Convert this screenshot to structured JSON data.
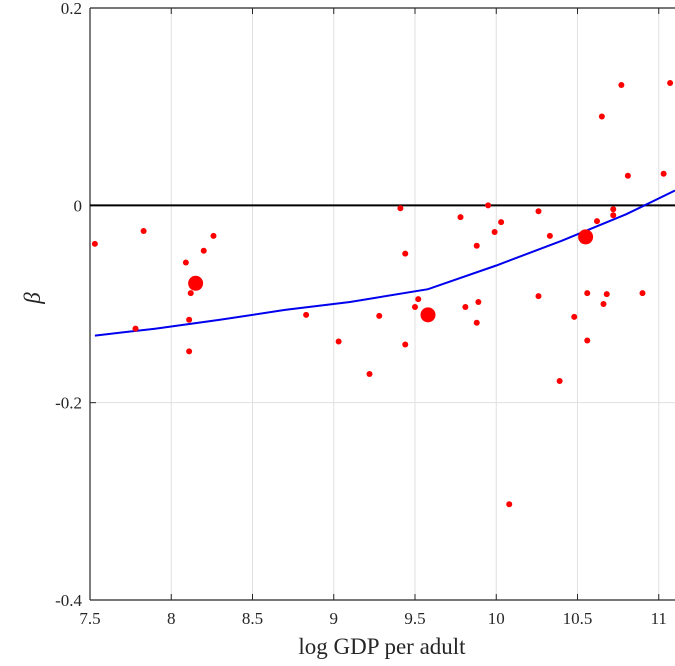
{
  "chart_data": {
    "type": "scatter",
    "xlabel": "log GDP per adult",
    "ylabel": "β",
    "xlim": [
      7.5,
      11.1
    ],
    "ylim": [
      -0.4,
      0.2
    ],
    "xticks": [
      7.5,
      8,
      8.5,
      9,
      9.5,
      10,
      10.5,
      11
    ],
    "xtick_labels": [
      "7.5",
      "8",
      "8.5",
      "9",
      "9.5",
      "10",
      "10.5",
      "11"
    ],
    "yticks": [
      -0.4,
      -0.2,
      0,
      0.2
    ],
    "ytick_labels": [
      "-0.4",
      "-0.2",
      "0",
      "0.2"
    ],
    "grid": true,
    "zero_line": 0,
    "colors": {
      "points": "#ff0000",
      "fit_line": "#0000ee",
      "zero_line": "#000000",
      "grid": "#e0e0e0",
      "axes": "#262626"
    },
    "points": [
      {
        "x": 7.53,
        "y": -0.039
      },
      {
        "x": 7.78,
        "y": -0.125
      },
      {
        "x": 7.83,
        "y": -0.026
      },
      {
        "x": 8.09,
        "y": -0.058
      },
      {
        "x": 8.11,
        "y": -0.116
      },
      {
        "x": 8.11,
        "y": -0.148
      },
      {
        "x": 8.12,
        "y": -0.089
      },
      {
        "x": 8.2,
        "y": -0.046
      },
      {
        "x": 8.26,
        "y": -0.031
      },
      {
        "x": 8.83,
        "y": -0.111
      },
      {
        "x": 9.03,
        "y": -0.138
      },
      {
        "x": 9.22,
        "y": -0.171
      },
      {
        "x": 9.28,
        "y": -0.112
      },
      {
        "x": 9.41,
        "y": -0.003
      },
      {
        "x": 9.44,
        "y": -0.049
      },
      {
        "x": 9.44,
        "y": -0.141
      },
      {
        "x": 9.5,
        "y": -0.103
      },
      {
        "x": 9.52,
        "y": -0.095
      },
      {
        "x": 9.78,
        "y": -0.012
      },
      {
        "x": 9.81,
        "y": -0.103
      },
      {
        "x": 9.88,
        "y": -0.041
      },
      {
        "x": 9.88,
        "y": -0.119
      },
      {
        "x": 9.89,
        "y": -0.098
      },
      {
        "x": 9.95,
        "y": 0.0
      },
      {
        "x": 9.99,
        "y": -0.027
      },
      {
        "x": 10.03,
        "y": -0.017
      },
      {
        "x": 10.08,
        "y": -0.303
      },
      {
        "x": 10.26,
        "y": -0.006
      },
      {
        "x": 10.26,
        "y": -0.092
      },
      {
        "x": 10.33,
        "y": -0.031
      },
      {
        "x": 10.39,
        "y": -0.178
      },
      {
        "x": 10.48,
        "y": -0.113
      },
      {
        "x": 10.56,
        "y": -0.089
      },
      {
        "x": 10.56,
        "y": -0.137
      },
      {
        "x": 10.62,
        "y": -0.016
      },
      {
        "x": 10.65,
        "y": 0.09
      },
      {
        "x": 10.66,
        "y": -0.1
      },
      {
        "x": 10.68,
        "y": -0.09
      },
      {
        "x": 10.72,
        "y": -0.01
      },
      {
        "x": 10.72,
        "y": -0.004
      },
      {
        "x": 10.77,
        "y": 0.122
      },
      {
        "x": 10.81,
        "y": 0.03
      },
      {
        "x": 10.9,
        "y": -0.089
      },
      {
        "x": 11.03,
        "y": 0.032
      },
      {
        "x": 11.07,
        "y": 0.124
      }
    ],
    "large_points": [
      {
        "x": 8.15,
        "y": -0.079
      },
      {
        "x": 9.58,
        "y": -0.111
      },
      {
        "x": 10.55,
        "y": -0.032
      }
    ],
    "fit_line": {
      "x": [
        7.53,
        7.9,
        8.3,
        8.7,
        9.1,
        9.58,
        10.0,
        10.4,
        10.8,
        11.1
      ],
      "y": [
        -0.132,
        -0.125,
        -0.116,
        -0.106,
        -0.098,
        -0.085,
        -0.061,
        -0.036,
        -0.009,
        0.015
      ]
    }
  }
}
